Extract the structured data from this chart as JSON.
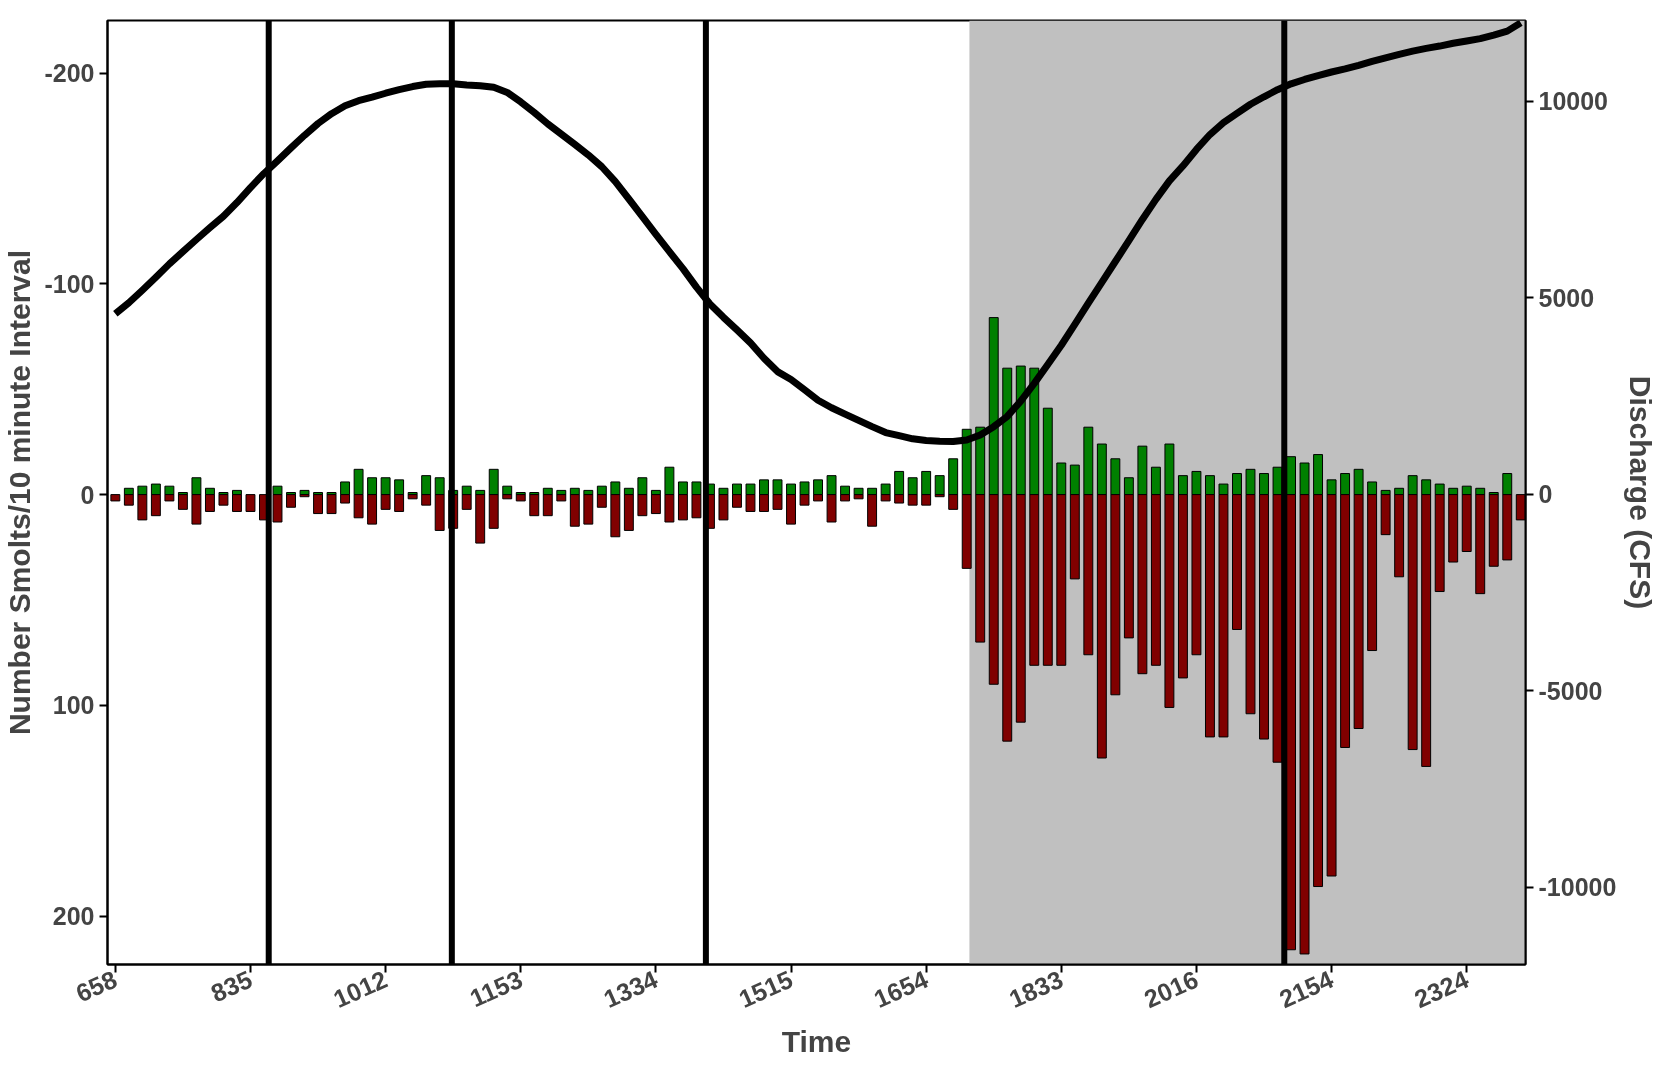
{
  "chart_data": {
    "type": "bar",
    "stacked": true,
    "xlabel": "Time",
    "ylabel": "Number Smolts/10 minute Interval",
    "y2label": "Discharge (CFS)",
    "categories": [
      "658",
      null,
      null,
      null,
      null,
      null,
      null,
      null,
      null,
      null,
      "835",
      null,
      null,
      null,
      null,
      null,
      null,
      null,
      null,
      null,
      "1012",
      null,
      null,
      null,
      null,
      null,
      null,
      null,
      null,
      null,
      "1153",
      null,
      null,
      null,
      null,
      null,
      null,
      null,
      null,
      null,
      "1334",
      null,
      null,
      null,
      null,
      null,
      null,
      null,
      null,
      null,
      "1515",
      null,
      null,
      null,
      null,
      null,
      null,
      null,
      null,
      null,
      "1654",
      null,
      null,
      null,
      null,
      null,
      null,
      null,
      null,
      null,
      "1833",
      null,
      null,
      null,
      null,
      null,
      null,
      null,
      null,
      null,
      "2016",
      null,
      null,
      null,
      null,
      null,
      null,
      null,
      null,
      null,
      "2154",
      null,
      null,
      null,
      null,
      null,
      null,
      null,
      null,
      null,
      "2324",
      null,
      null,
      null,
      null
    ],
    "series": [
      {
        "color": "#008000",
        "values": [
          0,
          -3,
          -4,
          -5,
          -4,
          -1,
          -8,
          -3,
          -1,
          -2,
          0,
          0,
          -4,
          -1,
          -2,
          -1,
          -1,
          -6,
          -12,
          -8,
          -8,
          -7,
          -1,
          -9,
          -8,
          -2,
          -4,
          -2,
          -12,
          -4,
          -1,
          -1,
          -3,
          -2,
          -3,
          -2,
          -4,
          -6,
          -3,
          -8,
          -2,
          -13,
          -6,
          -6,
          -5,
          -3,
          -5,
          -5,
          -7,
          -7,
          -5,
          -6,
          -7,
          -9,
          -4,
          -3,
          -3,
          -5,
          -11,
          -8,
          -11,
          -9,
          -17,
          -31,
          -32,
          -84,
          -60,
          -61,
          -60,
          -41,
          -15,
          -14,
          -32,
          -24,
          -17,
          -8,
          -23,
          -13,
          -24,
          -9,
          -11,
          -9,
          -5,
          -10,
          -12,
          -10,
          -13,
          -18,
          -15,
          -19,
          -7,
          -10,
          -12,
          -6,
          -2,
          -3,
          -9,
          -7,
          -5,
          -3,
          -4,
          -3,
          -1,
          -10,
          0
        ]
      },
      {
        "color": "#800000",
        "values": [
          3,
          5,
          12,
          10,
          3,
          7,
          14,
          8,
          5,
          8,
          8,
          12,
          13,
          6,
          1,
          9,
          9,
          4,
          11,
          14,
          7,
          8,
          2,
          5,
          17,
          16,
          7,
          23,
          16,
          2,
          3,
          10,
          10,
          3,
          15,
          14,
          6,
          20,
          17,
          10,
          9,
          13,
          12,
          11,
          16,
          12,
          6,
          8,
          8,
          7,
          14,
          5,
          3,
          13,
          3,
          2,
          15,
          3,
          4,
          5,
          5,
          1,
          7,
          35,
          70,
          90,
          117,
          108,
          81,
          81,
          81,
          40,
          76,
          125,
          95,
          68,
          85,
          81,
          101,
          87,
          76,
          115,
          115,
          64,
          104,
          116,
          127,
          216,
          218,
          186,
          181,
          120,
          111,
          74,
          19,
          39,
          121,
          129,
          46,
          32,
          27,
          47,
          34,
          31,
          12
        ]
      },
      {
        "type": "line",
        "axis": "y2",
        "color": "#000000",
        "values": [
          4590,
          4870,
          5190,
          5520,
          5860,
          6170,
          6480,
          6780,
          7070,
          7420,
          7800,
          8160,
          8480,
          8810,
          9130,
          9430,
          9680,
          9880,
          10010,
          10100,
          10200,
          10290,
          10370,
          10430,
          10440,
          10440,
          10410,
          10390,
          10350,
          10220,
          9980,
          9710,
          9420,
          9160,
          8900,
          8630,
          8330,
          7950,
          7510,
          7060,
          6610,
          6170,
          5740,
          5270,
          4840,
          4500,
          4180,
          3850,
          3460,
          3120,
          2920,
          2660,
          2390,
          2200,
          2040,
          1880,
          1720,
          1570,
          1490,
          1410,
          1370,
          1350,
          1340,
          1380,
          1510,
          1720,
          1980,
          2370,
          2820,
          3300,
          3790,
          4320,
          4860,
          5390,
          5920,
          6450,
          6990,
          7500,
          7970,
          8350,
          8770,
          9150,
          9450,
          9690,
          9920,
          10110,
          10290,
          10440,
          10550,
          10650,
          10740,
          10820,
          10910,
          11010,
          11100,
          11190,
          11270,
          11340,
          11400,
          11470,
          11530,
          11590,
          11680,
          11780,
          11990
        ]
      }
    ],
    "ylim": [
      223,
      -225
    ],
    "yticks": [
      -200,
      -100,
      0,
      100,
      200
    ],
    "y2lim": [
      -11960,
      12050
    ],
    "y2ticks": [
      -10000,
      -5000,
      0,
      5000,
      10000
    ]
  }
}
